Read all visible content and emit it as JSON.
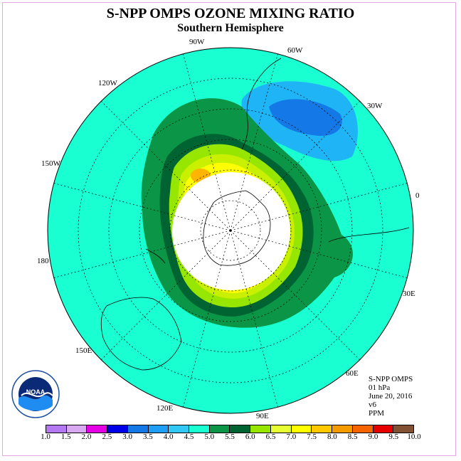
{
  "title": "S-NPP OMPS OZONE MIXING RATIO",
  "subtitle": "Southern Hemisphere",
  "info": {
    "line1": "S-NPP OMPS",
    "line2": "01 hPa",
    "line3": "June 20, 2016",
    "line4": "v6",
    "line5": "PPM"
  },
  "lon_labels": [
    "90W",
    "60W",
    "120W",
    "30W",
    "150W",
    "0",
    "180",
    "30E",
    "150E",
    "60E",
    "120E",
    "90E"
  ],
  "logo_text": "NOAA",
  "legend": {
    "ticks": [
      "1.0",
      "1.5",
      "2.0",
      "2.5",
      "3.0",
      "3.5",
      "4.0",
      "4.5",
      "5.0",
      "5.5",
      "6.0",
      "6.5",
      "7.0",
      "7.5",
      "8.0",
      "8.5",
      "9.0",
      "9.5",
      "10.0"
    ],
    "colors": [
      "#b478f0",
      "#d8a8f0",
      "#e600e6",
      "#0000e6",
      "#1478e6",
      "#1e9ef5",
      "#32c8f5",
      "#19ffd2",
      "#0a9646",
      "#006432",
      "#96e600",
      "#e6ff32",
      "#ffff00",
      "#ffc800",
      "#f59b00",
      "#f56400",
      "#e60000",
      "#825032"
    ]
  },
  "map_colors": {
    "background": "#19ffd2",
    "dark_green": "#0a7a3a",
    "mid_green": "#0a9646",
    "deep_green": "#006432",
    "lime": "#96e600",
    "yellow_green": "#c8f000",
    "yellow": "#ffff00",
    "orange": "#ffb400",
    "blue_light": "#1eb4f5",
    "blue_dark": "#1478e6",
    "polar_night": "#ffffff"
  }
}
